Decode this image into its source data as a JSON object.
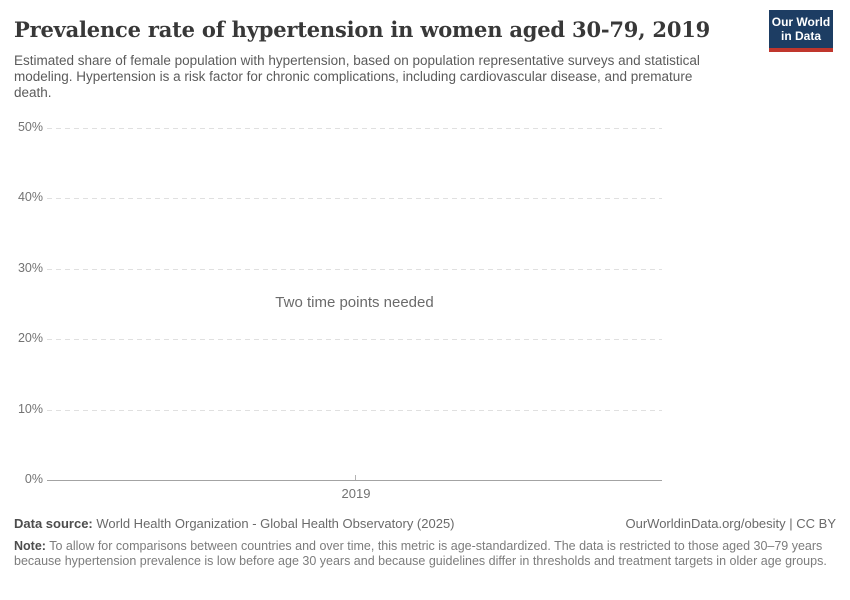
{
  "header": {
    "title": "Prevalence rate of hypertension in women aged 30-79, 2019",
    "subtitle": "Estimated share of female population with hypertension, based on population representative surveys and statistical modeling. Hypertension is a risk factor for chronic complications, including cardiovascular disease, and premature death.",
    "logo": {
      "line1": "Our World",
      "line2": "in Data",
      "bg_color": "#1d3d63",
      "accent_color": "#c0362d"
    }
  },
  "chart_data": {
    "type": "line",
    "title": "Prevalence rate of hypertension in women aged 30-79, 2019",
    "empty_state_message": "Two time points needed",
    "series": [],
    "x_ticks": [
      "2019"
    ],
    "y_ticks": [
      "0%",
      "10%",
      "20%",
      "30%",
      "40%",
      "50%"
    ],
    "ylim": [
      0,
      50
    ],
    "grid": "horizontal-dashed",
    "colors": {
      "gridline": "#e0e0e0",
      "axis_line": "#a3a3a3",
      "tick_label": "#737373"
    }
  },
  "footer": {
    "data_source_label": "Data source:",
    "data_source_value": " World Health Organization - Global Health Observatory (2025)",
    "attribution": "OurWorldinData.org/obesity | CC BY",
    "note_label": "Note:",
    "note_value": " To allow for comparisons between countries and over time, this metric is age-standardized. The data is restricted to those aged 30–79 years because hypertension prevalence is low before age 30 years and because guidelines differ in thresholds and treatment targets in older age groups."
  }
}
